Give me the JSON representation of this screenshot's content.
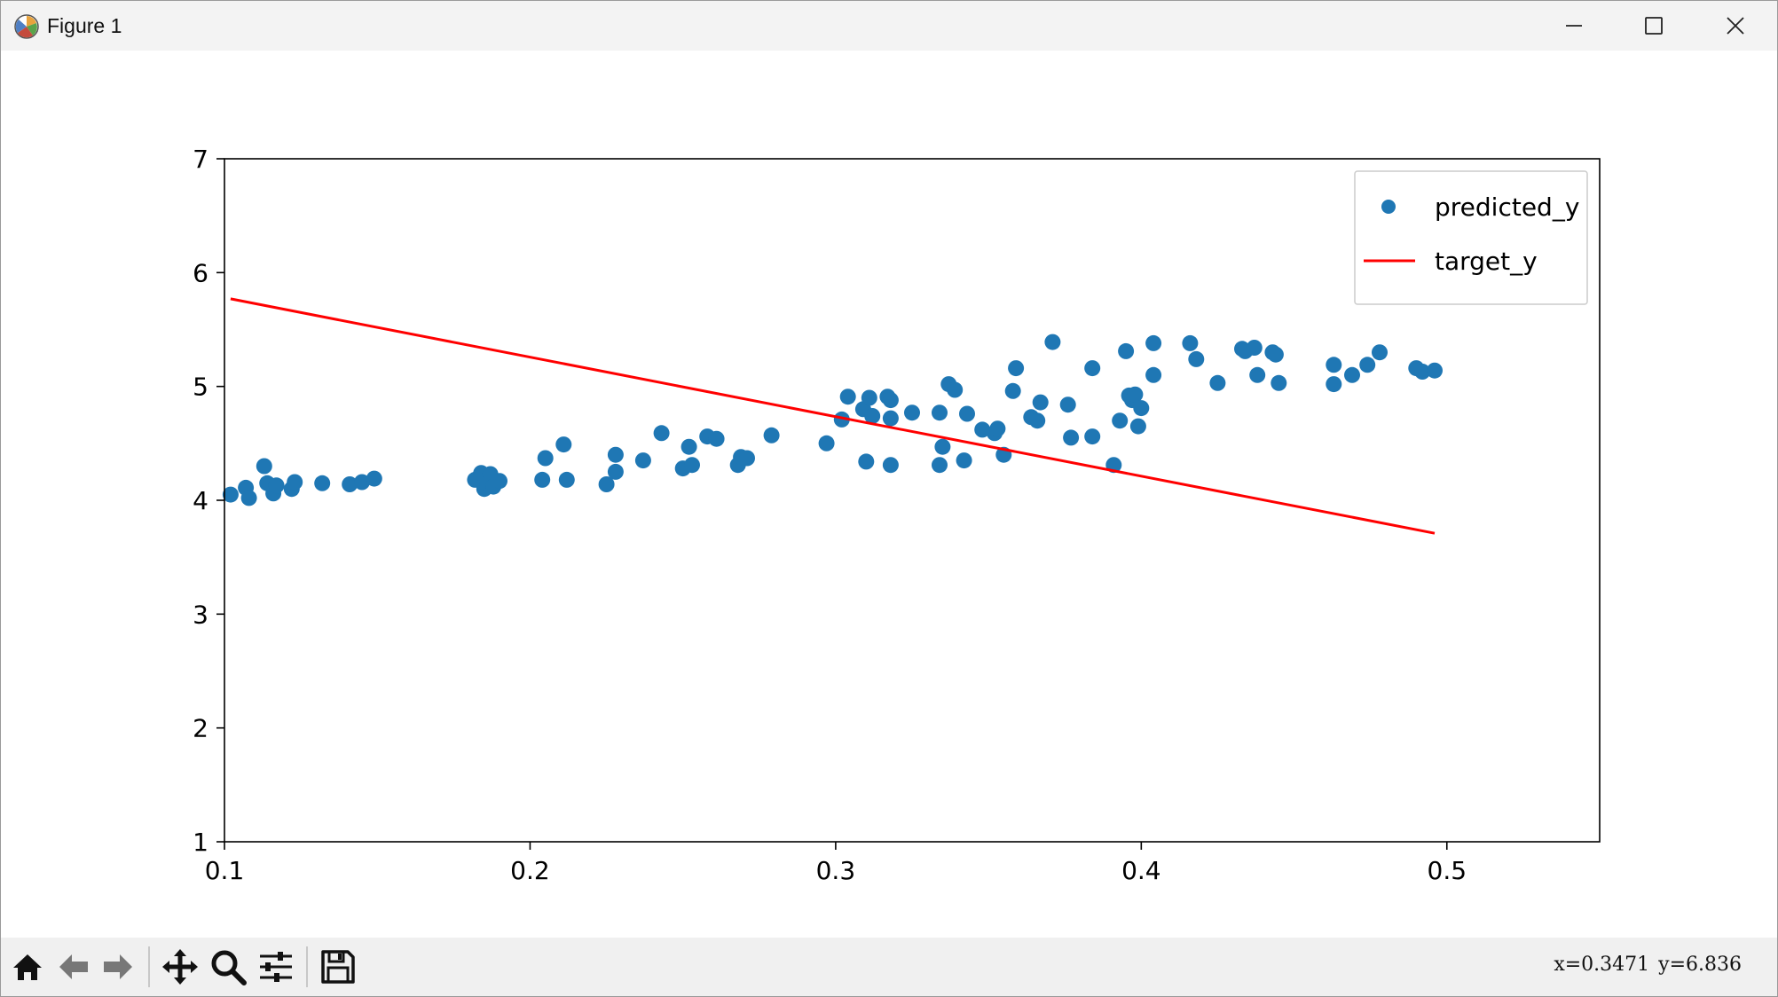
{
  "window": {
    "title": "Figure 1"
  },
  "toolbar": {
    "icons": [
      "home-icon",
      "back-arrow-icon",
      "forward-arrow-icon",
      "pan-move-icon",
      "zoom-magnifier-icon",
      "configure-subplots-icon",
      "save-floppy-icon"
    ],
    "readout_x": "x=0.3471",
    "readout_y": "y=6.836"
  },
  "colors": {
    "scatter": "#1f77b4",
    "line": "#ff0000",
    "axes": "#000000"
  },
  "chart_data": {
    "type": "scatter",
    "title": "",
    "xlabel": "",
    "ylabel": "",
    "xlim": [
      0.1,
      0.55
    ],
    "ylim": [
      1,
      7
    ],
    "xticks": [
      0.1,
      0.2,
      0.3,
      0.4,
      0.5
    ],
    "xtick_labels": [
      "0.1",
      "0.2",
      "0.3",
      "0.4",
      "0.5"
    ],
    "yticks": [
      1,
      2,
      3,
      4,
      5,
      6,
      7
    ],
    "ytick_labels": [
      "1",
      "2",
      "3",
      "4",
      "5",
      "6",
      "7"
    ],
    "grid": false,
    "legend_position": "top-right",
    "series": [
      {
        "name": "predicted_y",
        "kind": "scatter",
        "color": "#1f77b4",
        "points": [
          [
            0.102,
            4.05
          ],
          [
            0.107,
            4.11
          ],
          [
            0.108,
            4.02
          ],
          [
            0.113,
            4.3
          ],
          [
            0.114,
            4.15
          ],
          [
            0.116,
            4.06
          ],
          [
            0.117,
            4.13
          ],
          [
            0.122,
            4.1
          ],
          [
            0.123,
            4.16
          ],
          [
            0.132,
            4.15
          ],
          [
            0.141,
            4.14
          ],
          [
            0.145,
            4.16
          ],
          [
            0.149,
            4.19
          ],
          [
            0.182,
            4.18
          ],
          [
            0.184,
            4.24
          ],
          [
            0.185,
            4.1
          ],
          [
            0.186,
            4.15
          ],
          [
            0.187,
            4.23
          ],
          [
            0.188,
            4.12
          ],
          [
            0.19,
            4.17
          ],
          [
            0.204,
            4.18
          ],
          [
            0.205,
            4.37
          ],
          [
            0.211,
            4.49
          ],
          [
            0.212,
            4.18
          ],
          [
            0.225,
            4.14
          ],
          [
            0.228,
            4.4
          ],
          [
            0.228,
            4.25
          ],
          [
            0.237,
            4.35
          ],
          [
            0.243,
            4.59
          ],
          [
            0.25,
            4.28
          ],
          [
            0.252,
            4.47
          ],
          [
            0.253,
            4.31
          ],
          [
            0.258,
            4.56
          ],
          [
            0.261,
            4.54
          ],
          [
            0.268,
            4.31
          ],
          [
            0.269,
            4.38
          ],
          [
            0.271,
            4.37
          ],
          [
            0.279,
            4.57
          ],
          [
            0.297,
            4.5
          ],
          [
            0.302,
            4.71
          ],
          [
            0.304,
            4.91
          ],
          [
            0.309,
            4.8
          ],
          [
            0.31,
            4.34
          ],
          [
            0.311,
            4.9
          ],
          [
            0.312,
            4.74
          ],
          [
            0.317,
            4.91
          ],
          [
            0.318,
            4.88
          ],
          [
            0.318,
            4.31
          ],
          [
            0.318,
            4.72
          ],
          [
            0.325,
            4.77
          ],
          [
            0.334,
            4.31
          ],
          [
            0.334,
            4.77
          ],
          [
            0.335,
            4.47
          ],
          [
            0.337,
            5.02
          ],
          [
            0.339,
            4.97
          ],
          [
            0.342,
            4.35
          ],
          [
            0.343,
            4.76
          ],
          [
            0.348,
            4.62
          ],
          [
            0.352,
            4.59
          ],
          [
            0.353,
            4.63
          ],
          [
            0.355,
            4.4
          ],
          [
            0.358,
            4.96
          ],
          [
            0.359,
            5.16
          ],
          [
            0.364,
            4.73
          ],
          [
            0.366,
            4.7
          ],
          [
            0.367,
            4.86
          ],
          [
            0.371,
            5.39
          ],
          [
            0.376,
            4.84
          ],
          [
            0.377,
            4.55
          ],
          [
            0.384,
            4.56
          ],
          [
            0.384,
            5.16
          ],
          [
            0.391,
            4.31
          ],
          [
            0.393,
            4.7
          ],
          [
            0.395,
            5.31
          ],
          [
            0.396,
            4.92
          ],
          [
            0.397,
            4.88
          ],
          [
            0.398,
            4.93
          ],
          [
            0.399,
            4.65
          ],
          [
            0.4,
            4.81
          ],
          [
            0.404,
            5.38
          ],
          [
            0.404,
            5.1
          ],
          [
            0.416,
            5.38
          ],
          [
            0.418,
            5.24
          ],
          [
            0.425,
            5.03
          ],
          [
            0.433,
            5.33
          ],
          [
            0.434,
            5.31
          ],
          [
            0.437,
            5.34
          ],
          [
            0.438,
            5.1
          ],
          [
            0.443,
            5.3
          ],
          [
            0.444,
            5.28
          ],
          [
            0.445,
            5.03
          ],
          [
            0.463,
            5.02
          ],
          [
            0.463,
            5.19
          ],
          [
            0.469,
            5.1
          ],
          [
            0.474,
            5.19
          ],
          [
            0.478,
            5.3
          ],
          [
            0.49,
            5.16
          ],
          [
            0.492,
            5.13
          ],
          [
            0.496,
            5.14
          ]
        ]
      },
      {
        "name": "target_y",
        "kind": "line",
        "color": "#ff0000",
        "points": [
          [
            0.102,
            5.77
          ],
          [
            0.496,
            3.71
          ]
        ]
      }
    ]
  }
}
